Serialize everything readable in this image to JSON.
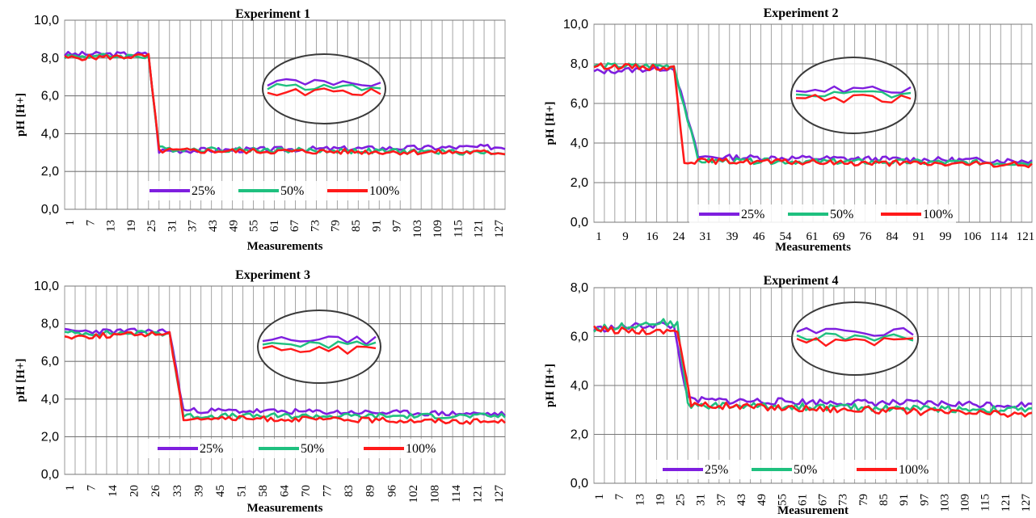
{
  "chart_data": [
    {
      "type": "line",
      "title": "Experiment 1",
      "xlabel": "Measurements",
      "ylabel": "pH [H+]",
      "ylim": [
        0,
        10
      ],
      "yticks": [
        "0,0",
        "2,0",
        "4,0",
        "6,0",
        "8,0",
        "10,0"
      ],
      "x_tick_labels": [
        "1",
        "7",
        "13",
        "19",
        "25",
        "31",
        "37",
        "43",
        "49",
        "55",
        "61",
        "67",
        "73",
        "79",
        "85",
        "91",
        "97",
        "103",
        "109",
        "115",
        "121",
        "127"
      ],
      "x_tick_rotated": true,
      "n_points": 127,
      "grid": true,
      "legend": "bottom",
      "zoom_callout": true,
      "series": [
        {
          "name": "25%",
          "color": "#7f1fdf",
          "segments": [
            [
              1,
              8.2
            ],
            [
              25,
              8.2
            ],
            [
              28,
              3.1
            ],
            [
              127,
              3.3
            ]
          ]
        },
        {
          "name": "50%",
          "color": "#1fc07f",
          "segments": [
            [
              1,
              8.1
            ],
            [
              25,
              8.1
            ],
            [
              28,
              3.2
            ],
            [
              127,
              3.0
            ]
          ]
        },
        {
          "name": "100%",
          "color": "#ff1a1a",
          "segments": [
            [
              1,
              8.0
            ],
            [
              25,
              8.1
            ],
            [
              28,
              3.1
            ],
            [
              127,
              3.0
            ]
          ]
        }
      ]
    },
    {
      "type": "line",
      "title": "Experiment 2",
      "xlabel": "Measurements",
      "ylabel": "pH [H+]",
      "ylim": [
        0,
        10
      ],
      "yticks": [
        "0,0",
        "2,0",
        "4,0",
        "6,0",
        "8,0",
        "10,0"
      ],
      "x_tick_labels": [
        "1",
        "9",
        "16",
        "24",
        "31",
        "39",
        "46",
        "54",
        "61",
        "69",
        "76",
        "84",
        "91",
        "99",
        "106",
        "114",
        "121"
      ],
      "x_tick_rotated": false,
      "n_points": 127,
      "grid": true,
      "legend": "bottom",
      "zoom_callout": true,
      "series": [
        {
          "name": "25%",
          "color": "#7f1fdf",
          "segments": [
            [
              1,
              7.6
            ],
            [
              24,
              7.8
            ],
            [
              31,
              3.3
            ],
            [
              127,
              3.1
            ]
          ]
        },
        {
          "name": "50%",
          "color": "#1fc07f",
          "segments": [
            [
              1,
              7.9
            ],
            [
              24,
              7.9
            ],
            [
              31,
              3.1
            ],
            [
              127,
              3.0
            ]
          ]
        },
        {
          "name": "100%",
          "color": "#ff1a1a",
          "segments": [
            [
              1,
              7.9
            ],
            [
              24,
              7.8
            ],
            [
              27,
              3.1
            ],
            [
              127,
              2.9
            ]
          ]
        }
      ]
    },
    {
      "type": "line",
      "title": "Experiment 3",
      "xlabel": "Measurements",
      "ylabel": "pH [H+]",
      "ylim": [
        0,
        10
      ],
      "yticks": [
        "0,0",
        "2,0",
        "4,0",
        "6,0",
        "8,0",
        "10,0"
      ],
      "x_tick_labels": [
        "1",
        "7",
        "14",
        "20",
        "26",
        "33",
        "39",
        "45",
        "51",
        "58",
        "64",
        "70",
        "77",
        "83",
        "89",
        "96",
        "102",
        "108",
        "114",
        "121",
        "127"
      ],
      "x_tick_rotated": true,
      "n_points": 127,
      "grid": true,
      "legend": "bottom",
      "zoom_callout": true,
      "series": [
        {
          "name": "25%",
          "color": "#7f1fdf",
          "segments": [
            [
              1,
              7.6
            ],
            [
              31,
              7.6
            ],
            [
              35,
              3.4
            ],
            [
              127,
              3.2
            ]
          ]
        },
        {
          "name": "50%",
          "color": "#1fc07f",
          "segments": [
            [
              1,
              7.5
            ],
            [
              31,
              7.5
            ],
            [
              35,
              3.1
            ],
            [
              127,
              3.1
            ]
          ]
        },
        {
          "name": "100%",
          "color": "#ff1a1a",
          "segments": [
            [
              1,
              7.3
            ],
            [
              31,
              7.5
            ],
            [
              35,
              3.0
            ],
            [
              127,
              2.8
            ]
          ]
        }
      ]
    },
    {
      "type": "line",
      "title": "Experiment 4",
      "xlabel": "Measurement",
      "ylabel": "pH [H+]",
      "ylim": [
        0,
        8
      ],
      "yticks": [
        "0,0",
        "2,0",
        "4,0",
        "6,0",
        "8,0"
      ],
      "x_tick_labels": [
        "1",
        "7",
        "13",
        "19",
        "25",
        "31",
        "37",
        "43",
        "49",
        "55",
        "61",
        "67",
        "73",
        "79",
        "85",
        "91",
        "97",
        "103",
        "109",
        "115",
        "121",
        "127"
      ],
      "x_tick_rotated": true,
      "n_points": 127,
      "grid": true,
      "legend": "bottom",
      "zoom_callout": true,
      "series": [
        {
          "name": "25%",
          "color": "#7f1fdf",
          "segments": [
            [
              1,
              6.3
            ],
            [
              20,
              6.5
            ],
            [
              24,
              6.4
            ],
            [
              28,
              3.4
            ],
            [
              127,
              3.2
            ]
          ]
        },
        {
          "name": "50%",
          "color": "#1fc07f",
          "segments": [
            [
              1,
              6.3
            ],
            [
              20,
              6.6
            ],
            [
              25,
              6.5
            ],
            [
              28,
              3.2
            ],
            [
              127,
              3.0
            ]
          ]
        },
        {
          "name": "100%",
          "color": "#ff1a1a",
          "segments": [
            [
              1,
              6.3
            ],
            [
              20,
              6.2
            ],
            [
              25,
              6.3
            ],
            [
              29,
              3.2
            ],
            [
              127,
              2.8
            ]
          ]
        }
      ]
    }
  ]
}
